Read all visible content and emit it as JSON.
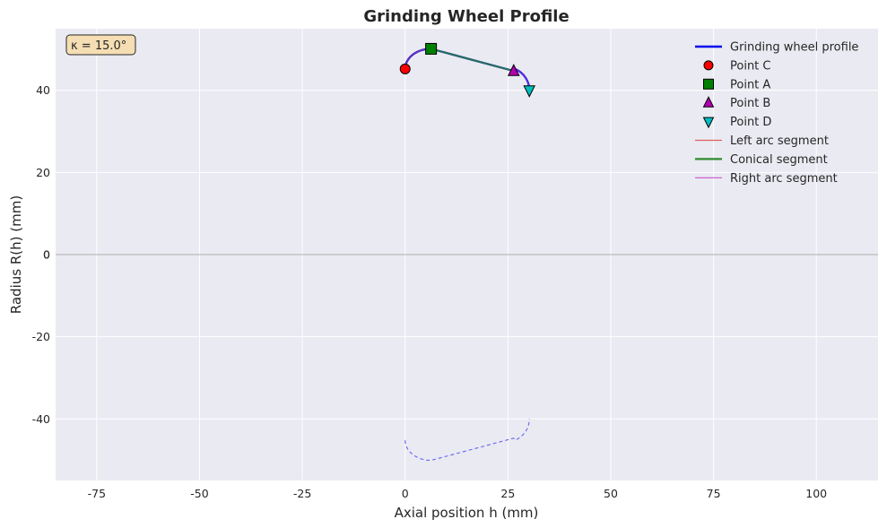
{
  "chart_data": {
    "type": "line",
    "title": "Grinding Wheel Profile",
    "xlabel": "Axial position h (mm)",
    "ylabel": "Radius R(h) (mm)",
    "xlim": [
      -85,
      115
    ],
    "ylim": [
      -55,
      55
    ],
    "x_ticks": [
      -75,
      -50,
      -25,
      0,
      25,
      50,
      75,
      100
    ],
    "y_ticks": [
      -40,
      -20,
      0,
      20,
      40
    ],
    "grid": true,
    "legend_position": "top-right",
    "annotation": "κ = 15.0°",
    "colors": {
      "plot_bg": "#eaeaf2",
      "grid": "#ffffff",
      "profile": "#0000ee",
      "mirror": "#6666ee",
      "left_arc": "#e06060",
      "conical": "#2e8b2e",
      "right_arc": "#cc55cc",
      "point_c": "#ff0000",
      "point_a": "#008000",
      "point_b": "#b000b0",
      "point_d": "#00bfbf",
      "annot_bg": "#f5deb3",
      "zero_line": "#b0b0b0"
    },
    "geometry": {
      "left_arc_center": [
        6.3,
        45.2
      ],
      "left_arc_radius": 6.3,
      "right_arc_center": [
        24.6,
        40.0
      ],
      "right_arc_radius": 5.6
    },
    "series": [
      {
        "name": "Grinding wheel profile",
        "kind": "line",
        "style": "solid"
      },
      {
        "name": "Point C",
        "kind": "marker",
        "marker": "circle",
        "x": 0.0,
        "y": 45.2
      },
      {
        "name": "Point A",
        "kind": "marker",
        "marker": "square",
        "x": 6.3,
        "y": 50.1
      },
      {
        "name": "Point B",
        "kind": "marker",
        "marker": "triangle-up",
        "x": 26.4,
        "y": 44.7
      },
      {
        "name": "Point D",
        "kind": "marker",
        "marker": "triangle-down",
        "x": 30.2,
        "y": 40.0
      },
      {
        "name": "Left arc segment",
        "kind": "line",
        "style": "thin"
      },
      {
        "name": "Conical segment",
        "kind": "line",
        "style": "thick"
      },
      {
        "name": "Right arc segment",
        "kind": "line",
        "style": "thin"
      }
    ]
  }
}
